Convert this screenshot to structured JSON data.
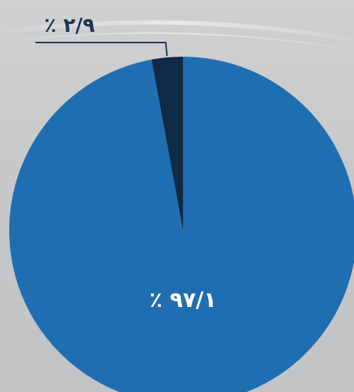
{
  "chart_data": {
    "type": "pie",
    "slices": [
      {
        "label": "٪ ۹۷/۱",
        "value": 97.1,
        "color": "#1f6eb2"
      },
      {
        "label": "٪ ۲/۹",
        "value": 2.9,
        "color": "#0e2a47"
      }
    ],
    "start_angle_deg": 0,
    "direction": "clockwise",
    "legend": "none",
    "background_color": "#c9cacc",
    "label_colors": [
      "#ffffff",
      "#1c3552"
    ]
  }
}
